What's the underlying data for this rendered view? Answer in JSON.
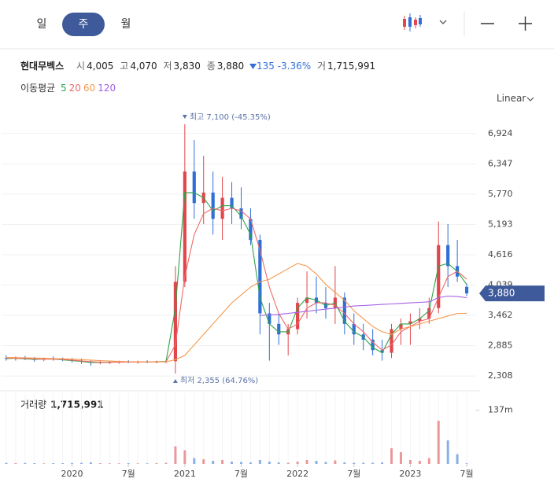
{
  "tabs": [
    "일",
    "주",
    "월"
  ],
  "active_tab": 1,
  "quote": {
    "name": "현대무벡스",
    "fields": [
      {
        "label": "시",
        "value": "4,005"
      },
      {
        "label": "고",
        "value": "4,070"
      },
      {
        "label": "저",
        "value": "3,830"
      },
      {
        "label": "종",
        "value": "3,880"
      }
    ],
    "change": "135",
    "change_pct": "-3.36%",
    "volume_label": "거",
    "volume": "1,715,991"
  },
  "scale_mode": "Linear",
  "chart_data": {
    "type": "candlestick",
    "up_color": "#e0464b",
    "down_color": "#2f6fd6",
    "candles": {
      "open": [
        2650,
        2640,
        2650,
        2630,
        2620,
        2640,
        2630,
        2610,
        2600,
        2580,
        2560,
        2570,
        2570,
        2580,
        2570,
        2580,
        2575,
        2580,
        2590,
        4100,
        6200,
        5600,
        5800,
        5300,
        5700,
        5500,
        5300,
        4900,
        3500,
        3300,
        3100,
        3200,
        3700,
        3800,
        3700,
        3600,
        3800,
        3300,
        3100,
        3000,
        2800,
        2750,
        3200,
        3300,
        3350,
        3400,
        3600,
        4800,
        4400,
        4005
      ],
      "high": [
        2700,
        2680,
        2690,
        2670,
        2660,
        2680,
        2660,
        2650,
        2640,
        2620,
        2610,
        2600,
        2600,
        2610,
        2600,
        2610,
        2600,
        2610,
        4400,
        7100,
        6800,
        6500,
        6200,
        6100,
        6000,
        5900,
        5500,
        5000,
        3700,
        3500,
        3300,
        3800,
        4300,
        4200,
        4000,
        4400,
        3900,
        3500,
        3300,
        3200,
        3000,
        3300,
        3400,
        3500,
        3600,
        3800,
        5250,
        5200,
        4900,
        4070
      ],
      "low": [
        2600,
        2600,
        2610,
        2580,
        2590,
        2600,
        2590,
        2560,
        2540,
        2500,
        2530,
        2540,
        2540,
        2550,
        2540,
        2550,
        2550,
        2550,
        2355,
        4000,
        5300,
        5200,
        5000,
        4900,
        5200,
        5100,
        4800,
        3100,
        2600,
        2900,
        2700,
        3100,
        3400,
        3500,
        3400,
        3300,
        3100,
        2900,
        2800,
        2700,
        2600,
        2650,
        2900,
        2900,
        3200,
        3300,
        3500,
        4000,
        4100,
        3830
      ],
      "close": [
        2640,
        2650,
        2630,
        2620,
        2640,
        2630,
        2610,
        2600,
        2580,
        2560,
        2570,
        2570,
        2580,
        2570,
        2580,
        2575,
        2580,
        2590,
        4100,
        6200,
        5600,
        5800,
        5300,
        5700,
        5500,
        5300,
        4900,
        3500,
        3300,
        3100,
        3200,
        3700,
        3800,
        3700,
        3600,
        3800,
        3300,
        3100,
        3000,
        2800,
        2750,
        3200,
        3300,
        3350,
        3400,
        3600,
        4800,
        4400,
        4200,
        3880
      ]
    },
    "ma_title": "이동평균",
    "moving_averages": [
      {
        "name": "5",
        "color": "#2ea24a",
        "values": [
          2640,
          2645,
          2635,
          2625,
          2630,
          2630,
          2615,
          2600,
          2585,
          2565,
          2565,
          2570,
          2575,
          2572,
          2575,
          2577,
          2580,
          2585,
          3600,
          5800,
          5800,
          5700,
          5450,
          5550,
          5550,
          5350,
          5000,
          3800,
          3300,
          3150,
          3150,
          3600,
          3800,
          3750,
          3650,
          3700,
          3350,
          3150,
          3050,
          2850,
          2750,
          3100,
          3300,
          3300,
          3400,
          3550,
          4400,
          4450,
          4300,
          4050
        ]
      },
      {
        "name": "20",
        "color": "#ef6a6a",
        "values": [
          2650,
          2648,
          2642,
          2635,
          2630,
          2628,
          2622,
          2610,
          2595,
          2580,
          2570,
          2568,
          2570,
          2572,
          2573,
          2575,
          2577,
          2580,
          2900,
          4200,
          5000,
          5400,
          5500,
          5450,
          5500,
          5450,
          5300,
          4700,
          4000,
          3500,
          3200,
          3300,
          3600,
          3700,
          3700,
          3650,
          3500,
          3300,
          3150,
          2950,
          2800,
          2900,
          3150,
          3250,
          3350,
          3400,
          3800,
          4200,
          4300,
          4150
        ]
      },
      {
        "name": "60",
        "color": "#f59a4f",
        "values": [
          2660,
          2658,
          2654,
          2650,
          2645,
          2640,
          2635,
          2628,
          2620,
          2610,
          2600,
          2592,
          2585,
          2580,
          2578,
          2577,
          2577,
          2578,
          2620,
          2700,
          2900,
          3100,
          3300,
          3500,
          3700,
          3850,
          4000,
          4100,
          4150,
          4250,
          4350,
          4450,
          4400,
          4250,
          4050,
          3900,
          3750,
          3550,
          3400,
          3250,
          3150,
          3100,
          3200,
          3250,
          3300,
          3350,
          3400,
          3450,
          3500,
          3500
        ]
      },
      {
        "name": "120",
        "color": "#a55ee6",
        "values": [
          null,
          null,
          null,
          null,
          null,
          null,
          null,
          null,
          null,
          null,
          null,
          null,
          null,
          null,
          null,
          null,
          null,
          null,
          null,
          null,
          null,
          null,
          null,
          null,
          null,
          null,
          null,
          3460,
          3470,
          3480,
          3500,
          3520,
          3540,
          3560,
          3580,
          3600,
          3620,
          3640,
          3650,
          3660,
          3670,
          3680,
          3690,
          3700,
          3710,
          3720,
          3800,
          3830,
          3820,
          3800
        ]
      }
    ],
    "xlim": [
      -0.5,
      50
    ],
    "xticks": [
      {
        "value": 7,
        "label": "2020"
      },
      {
        "value": 13,
        "label": "7월"
      },
      {
        "value": 19,
        "label": "2021"
      },
      {
        "value": 25,
        "label": "7월"
      },
      {
        "value": 31,
        "label": "2022"
      },
      {
        "value": 37,
        "label": "7월"
      },
      {
        "value": 43,
        "label": "2023"
      },
      {
        "value": 49,
        "label": "7월"
      }
    ],
    "ylim": [
      2130,
      7370
    ],
    "yticks": [
      {
        "value": 2308,
        "label": "2,308"
      },
      {
        "value": 2885,
        "label": "2,885"
      },
      {
        "value": 3462,
        "label": "3,462"
      },
      {
        "value": 4039,
        "label": "4,039"
      },
      {
        "value": 4616,
        "label": "4,616"
      },
      {
        "value": 5193,
        "label": "5,193"
      },
      {
        "value": 5770,
        "label": "5,770"
      },
      {
        "value": 6347,
        "label": "6,347"
      },
      {
        "value": 6924,
        "label": "6,924"
      }
    ],
    "grid": true,
    "annotations": [
      {
        "kind": "high",
        "value": 7100,
        "text": "최고 7,100 (-45.35%)"
      },
      {
        "kind": "low",
        "value": 2355,
        "text": "최저 2,355 (64.76%)"
      }
    ],
    "last_price": {
      "value": 3880,
      "label": "3,880",
      "color": "#3e5a9a"
    },
    "volume": {
      "title": "거래량",
      "last": "1,715,991",
      "values": [
        3000000,
        2000000,
        2500000,
        2000000,
        1500000,
        2000000,
        2000000,
        2500000,
        3000000,
        4000000,
        2000000,
        1500000,
        1500000,
        2000000,
        1500000,
        1500000,
        2000000,
        3000000,
        45000000,
        35000000,
        15000000,
        12000000,
        8000000,
        10000000,
        6000000,
        5000000,
        4000000,
        10000000,
        6000000,
        4000000,
        3000000,
        6000000,
        10000000,
        8000000,
        5000000,
        9000000,
        4000000,
        3000000,
        3000000,
        3000000,
        4000000,
        40000000,
        30000000,
        10000000,
        8000000,
        15000000,
        110000000,
        60000000,
        25000000,
        1715991
      ],
      "ylim": [
        0,
        170000000
      ],
      "yticks": [
        {
          "value": 137000000,
          "label": "137m"
        }
      ]
    }
  }
}
